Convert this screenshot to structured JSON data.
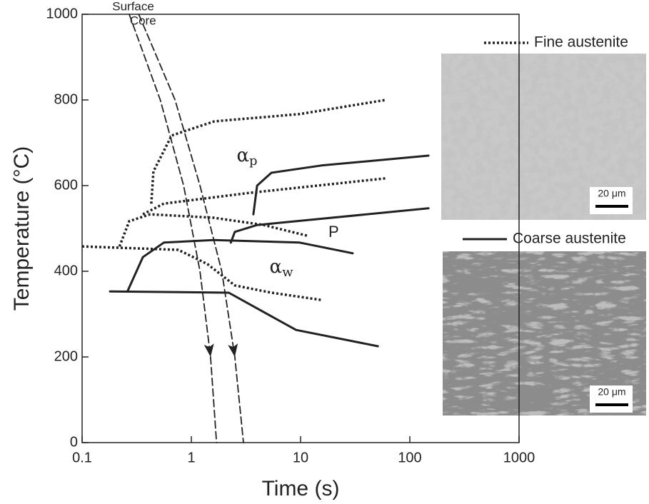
{
  "chart_data": {
    "type": "line",
    "x_label": "Time (s)",
    "y_label": "Temperature (°C)",
    "log_x": true,
    "xlim": [
      0.1,
      1000
    ],
    "ylim": [
      0,
      1000
    ],
    "xticks": [
      0.1,
      1,
      10,
      100,
      1000
    ],
    "yticks": [
      0,
      200,
      400,
      600,
      800,
      1000
    ],
    "color": "#222222",
    "legend": [
      {
        "name": "Fine austenite",
        "style": "dotted"
      },
      {
        "name": "Coarse austenite",
        "style": "solid"
      }
    ],
    "series": [
      {
        "name": "Surface",
        "style": "dashed",
        "arrow": true,
        "x": [
          0.27,
          0.52,
          0.85,
          1.2,
          1.5,
          1.7
        ],
        "values": [
          1000,
          800,
          600,
          400,
          200,
          0
        ]
      },
      {
        "name": "Core",
        "style": "dashed",
        "arrow": true,
        "x": [
          0.33,
          0.71,
          1.2,
          1.9,
          2.5,
          3.0
        ],
        "values": [
          1000,
          800,
          600,
          400,
          200,
          0
        ]
      },
      {
        "style": "dotted",
        "x": [
          0.43,
          0.45,
          0.66,
          1.62,
          9.8,
          60
        ],
        "values": [
          558,
          633,
          717,
          750,
          767,
          800
        ]
      },
      {
        "style": "dotted",
        "x": [
          0.36,
          0.56,
          3.4,
          60
        ],
        "values": [
          533,
          558,
          583,
          617
        ]
      },
      {
        "style": "dotted",
        "x": [
          0.22,
          0.27,
          0.42,
          1.6,
          4.6,
          11.5
        ],
        "values": [
          458,
          517,
          533,
          525,
          508,
          483
        ]
      },
      {
        "style": "dotted",
        "x": [
          0.1,
          0.76,
          1.4,
          2.5,
          5.4,
          15.5
        ],
        "values": [
          458,
          450,
          417,
          367,
          350,
          333
        ]
      },
      {
        "style": "solid",
        "x": [
          3.7,
          4.0,
          5.4,
          15.5,
          148
        ],
        "values": [
          533,
          600,
          630,
          647,
          670
        ]
      },
      {
        "style": "solid",
        "x": [
          2.3,
          2.5,
          4.0,
          148
        ],
        "values": [
          467,
          492,
          508,
          547
        ]
      },
      {
        "style": "solid",
        "x": [
          0.26,
          0.36,
          0.56,
          1.6,
          9.8,
          30
        ],
        "values": [
          353,
          433,
          467,
          473,
          467,
          442
        ]
      },
      {
        "style": "solid",
        "x": [
          0.18,
          2.2,
          9.1,
          51
        ],
        "values": [
          353,
          350,
          263,
          225
        ]
      }
    ],
    "annotations": [
      {
        "text": "α",
        "subscript": "p",
        "x": 2.6,
        "y": 668
      },
      {
        "text": "P",
        "x": 18,
        "y": 490
      },
      {
        "text": "α",
        "subscript": "w",
        "x": 5.2,
        "y": 408
      }
    ],
    "micrographs": [
      {
        "scale_bar": "20 μm"
      },
      {
        "scale_bar": "20 μm"
      }
    ]
  }
}
